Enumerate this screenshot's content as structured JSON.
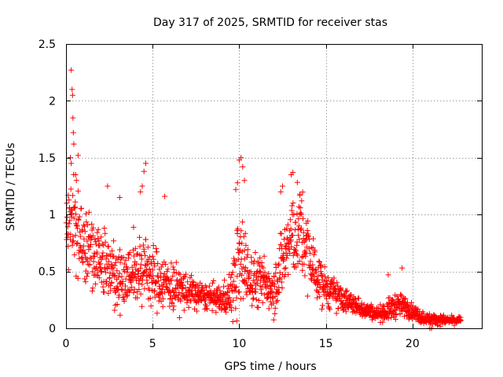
{
  "chart_data": {
    "type": "scatter",
    "title": "Day 317 of 2025, SRMTID for receiver stas",
    "xlabel": "GPS time / hours",
    "ylabel": "SRMTID / TECUs",
    "xlim": [
      0,
      24
    ],
    "ylim": [
      0,
      2.5
    ],
    "x_ticks": [
      0,
      5,
      10,
      15,
      20
    ],
    "x_tick_labels": [
      "0",
      "5",
      "10",
      "15",
      "20"
    ],
    "y_ticks": [
      0,
      0.5,
      1,
      1.5,
      2,
      2.5
    ],
    "y_tick_labels": [
      "0",
      "0.5",
      "1",
      "1.5",
      "2",
      "2.5"
    ],
    "grid": true,
    "marker": "+",
    "color": "#ff0000",
    "envelope": {
      "x": [
        0.0,
        0.25,
        0.5,
        1.0,
        1.5,
        2.0,
        2.5,
        3.0,
        3.5,
        4.0,
        4.5,
        5.0,
        5.5,
        6.0,
        6.5,
        7.0,
        7.5,
        8.0,
        8.5,
        9.0,
        9.5,
        10.0,
        10.3,
        10.5,
        11.0,
        11.5,
        12.0,
        12.5,
        13.0,
        13.5,
        14.0,
        14.5,
        15.0,
        15.5,
        16.0,
        16.5,
        17.0,
        17.5,
        18.0,
        18.5,
        19.0,
        19.5,
        20.0,
        20.5,
        21.0,
        21.5,
        22.0,
        22.5,
        22.8
      ],
      "median": [
        0.85,
        1.0,
        0.95,
        0.75,
        0.7,
        0.6,
        0.55,
        0.45,
        0.45,
        0.5,
        0.55,
        0.45,
        0.42,
        0.38,
        0.35,
        0.32,
        0.3,
        0.28,
        0.27,
        0.25,
        0.3,
        0.55,
        0.6,
        0.45,
        0.42,
        0.4,
        0.35,
        0.6,
        0.8,
        0.85,
        0.65,
        0.45,
        0.35,
        0.3,
        0.25,
        0.22,
        0.18,
        0.15,
        0.13,
        0.15,
        0.2,
        0.2,
        0.15,
        0.1,
        0.08,
        0.08,
        0.07,
        0.07,
        0.07
      ],
      "spread": [
        0.3,
        0.4,
        0.4,
        0.35,
        0.3,
        0.3,
        0.28,
        0.25,
        0.25,
        0.28,
        0.3,
        0.25,
        0.22,
        0.2,
        0.18,
        0.15,
        0.12,
        0.1,
        0.1,
        0.1,
        0.2,
        0.4,
        0.35,
        0.25,
        0.2,
        0.2,
        0.2,
        0.3,
        0.35,
        0.35,
        0.3,
        0.2,
        0.15,
        0.12,
        0.1,
        0.08,
        0.07,
        0.06,
        0.05,
        0.08,
        0.1,
        0.08,
        0.06,
        0.05,
        0.04,
        0.04,
        0.03,
        0.03,
        0.03
      ]
    },
    "peaks": [
      {
        "x": 0.3,
        "y": 2.27
      },
      {
        "x": 0.35,
        "y": 2.1
      },
      {
        "x": 0.38,
        "y": 2.05
      },
      {
        "x": 0.4,
        "y": 1.85
      },
      {
        "x": 0.42,
        "y": 1.72
      },
      {
        "x": 0.45,
        "y": 1.62
      },
      {
        "x": 0.7,
        "y": 1.52
      },
      {
        "x": 0.25,
        "y": 1.5
      },
      {
        "x": 0.3,
        "y": 1.45
      },
      {
        "x": 0.55,
        "y": 1.35
      },
      {
        "x": 0.6,
        "y": 1.3
      },
      {
        "x": 2.4,
        "y": 1.25
      },
      {
        "x": 3.1,
        "y": 1.15
      },
      {
        "x": 4.6,
        "y": 1.45
      },
      {
        "x": 4.5,
        "y": 1.38
      },
      {
        "x": 4.4,
        "y": 1.25
      },
      {
        "x": 4.3,
        "y": 1.2
      },
      {
        "x": 5.7,
        "y": 1.16
      },
      {
        "x": 10.0,
        "y": 1.48
      },
      {
        "x": 10.1,
        "y": 1.5
      },
      {
        "x": 10.2,
        "y": 1.42
      },
      {
        "x": 10.3,
        "y": 1.3
      },
      {
        "x": 9.9,
        "y": 1.28
      },
      {
        "x": 9.8,
        "y": 1.22
      },
      {
        "x": 13.0,
        "y": 1.35
      },
      {
        "x": 13.1,
        "y": 1.37
      },
      {
        "x": 12.5,
        "y": 1.25
      },
      {
        "x": 12.4,
        "y": 1.2
      },
      {
        "x": 13.5,
        "y": 1.18
      },
      {
        "x": 13.6,
        "y": 1.12
      },
      {
        "x": 19.4,
        "y": 0.53
      },
      {
        "x": 18.6,
        "y": 0.47
      },
      {
        "x": 20.5,
        "y": 0.05
      },
      {
        "x": 21.0,
        "y": 0.0
      },
      {
        "x": 21.1,
        "y": 0.0
      }
    ]
  }
}
